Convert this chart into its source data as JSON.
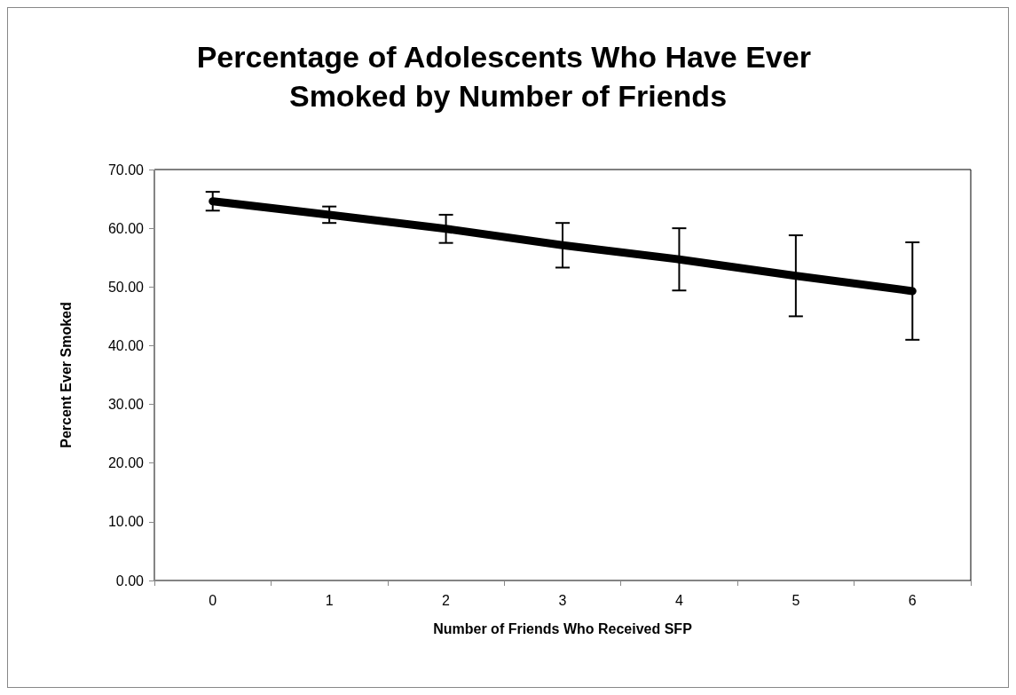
{
  "chart_data": {
    "type": "line",
    "title": "Percentage of Adolescents Who Have Ever Smoked by Number of Friends",
    "xlabel": "Number of Friends Who Received SFP",
    "ylabel": "Percent Ever Smoked",
    "categories": [
      "0",
      "1",
      "2",
      "3",
      "4",
      "5",
      "6"
    ],
    "series": [
      {
        "color": "#000000",
        "values": [
          64.6,
          62.3,
          59.9,
          57.1,
          54.7,
          51.9,
          49.3
        ],
        "errors": [
          1.6,
          1.4,
          2.4,
          3.8,
          5.3,
          6.9,
          8.3
        ]
      }
    ],
    "ylim": [
      0,
      70
    ],
    "yticks": [
      {
        "value": 0,
        "label": "0.00"
      },
      {
        "value": 10,
        "label": "10.00"
      },
      {
        "value": 20,
        "label": "20.00"
      },
      {
        "value": 30,
        "label": "30.00"
      },
      {
        "value": 40,
        "label": "40.00"
      },
      {
        "value": 50,
        "label": "50.00"
      },
      {
        "value": 60,
        "label": "60.00"
      },
      {
        "value": 70,
        "label": "70.00"
      }
    ],
    "grid": false,
    "marker": "none",
    "line_style": "solid"
  }
}
